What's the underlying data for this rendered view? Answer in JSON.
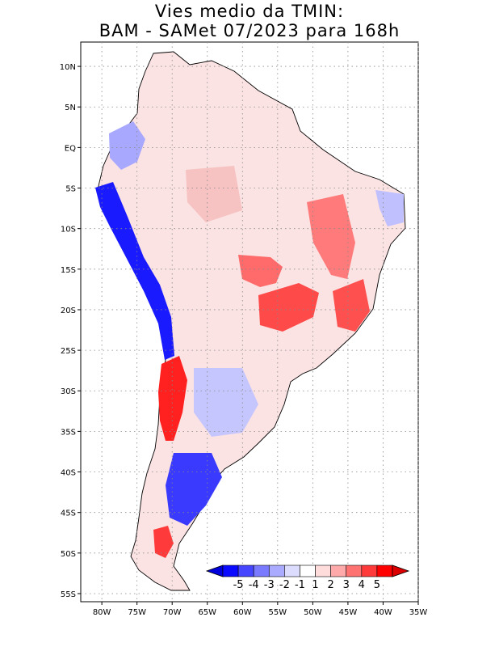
{
  "title_line1": "Vies medio da TMIN:",
  "title_line2": "BAM - SAMet 07/2023  para 168h",
  "map": {
    "lat_labels": [
      "10N",
      "5N",
      "EQ",
      "5S",
      "10S",
      "15S",
      "20S",
      "25S",
      "30S",
      "35S",
      "40S",
      "45S",
      "50S",
      "55S"
    ],
    "lon_labels": [
      "80W",
      "75W",
      "70W",
      "65W",
      "60W",
      "55W",
      "50W",
      "45W",
      "40W",
      "35W"
    ],
    "lon_range": [
      -83,
      -35
    ],
    "lat_range": [
      -56,
      13
    ]
  },
  "colorbar": {
    "labels": [
      "-5",
      "-4",
      "-3",
      "-2",
      "-1",
      "1",
      "2",
      "3",
      "4",
      "5"
    ],
    "colors": [
      "#0a0aff",
      "#4646ff",
      "#7a7aff",
      "#aaaaff",
      "#dcdcff",
      "#ffffff",
      "#ffdcdc",
      "#ffaaaa",
      "#ff7272",
      "#ff3a3a",
      "#ff0000"
    ],
    "under_color": "#0000dd",
    "over_color": "#dd0000"
  }
}
